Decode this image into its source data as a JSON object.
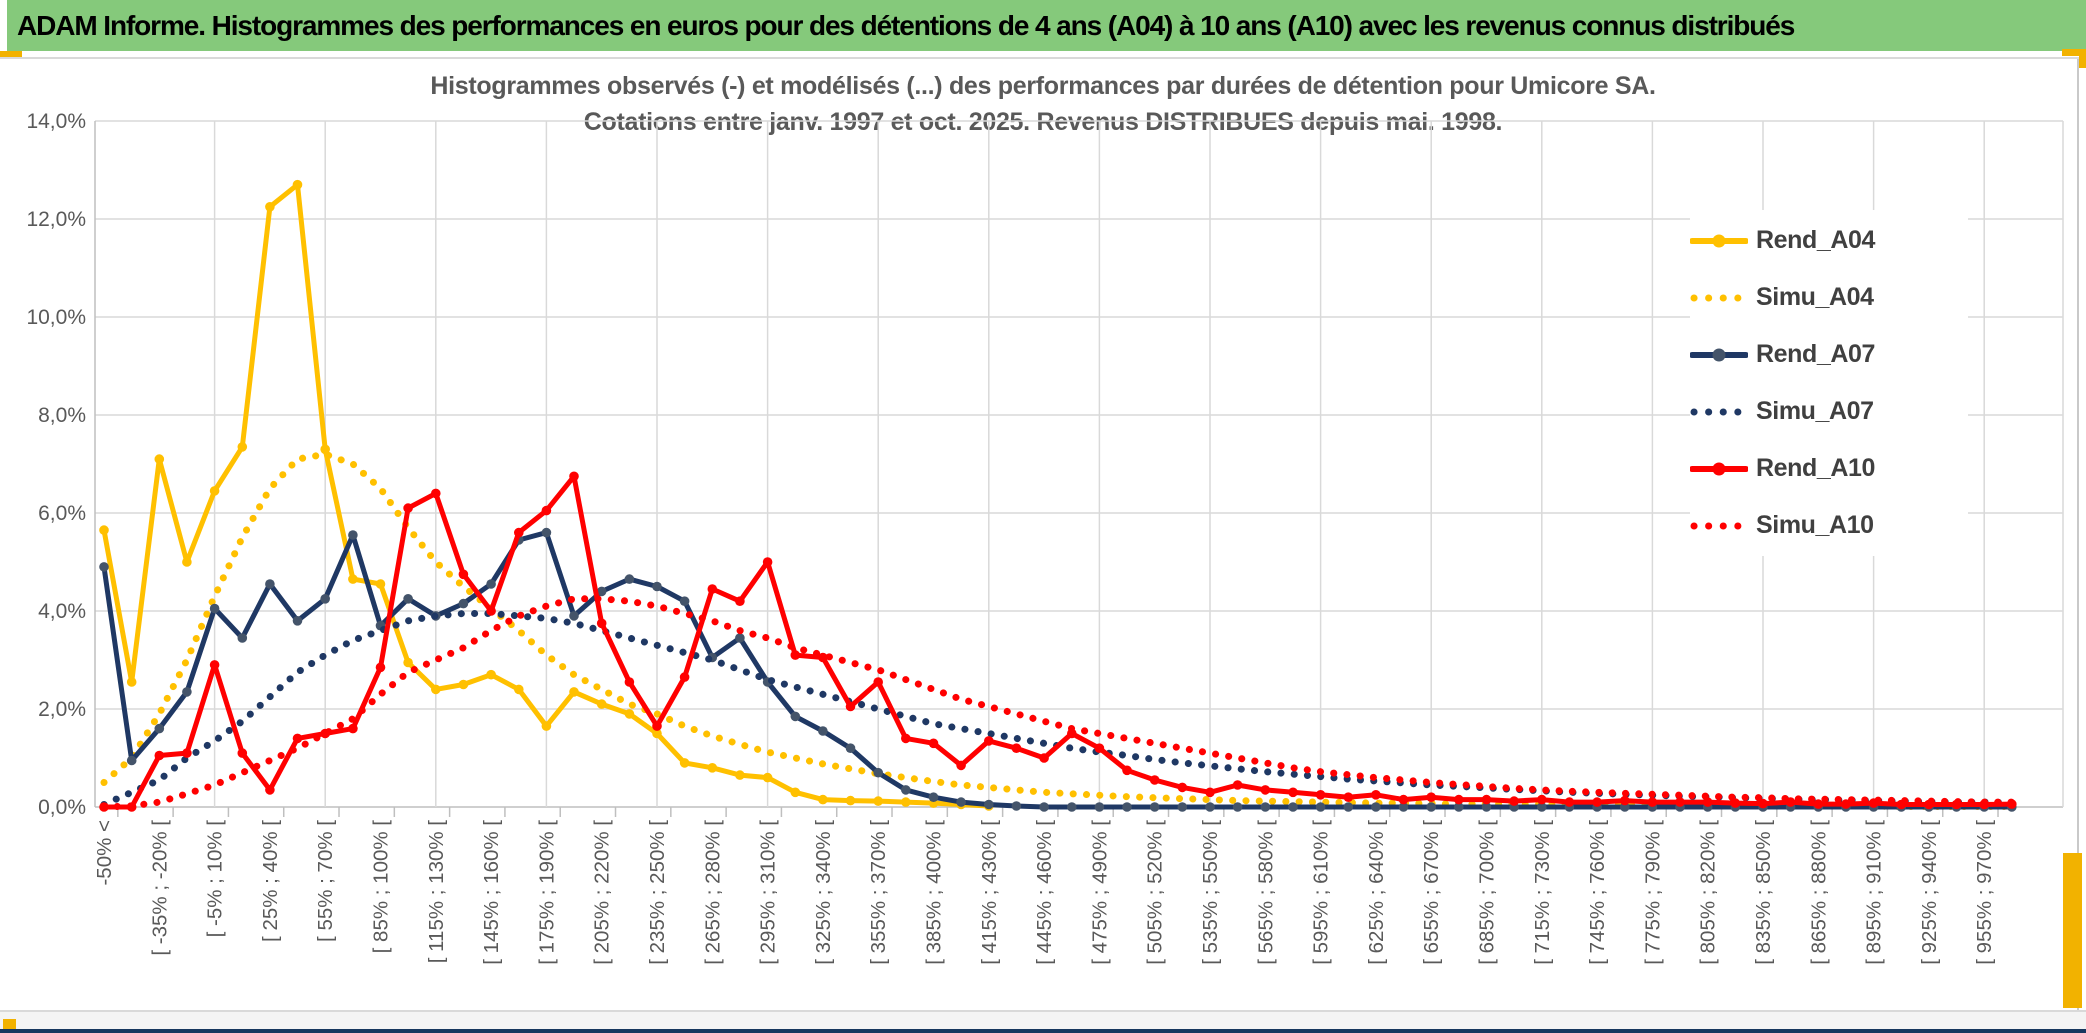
{
  "header": {
    "title": "ADAM Informe. Histogrammes des performances en euros pour des détentions de 4 ans (A04) à 10 ans (A10) avec les revenus connus distribués",
    "bg_color": "#85C97B"
  },
  "chart": {
    "title_line1": "Histogrammes observés (-) et modélisés (...) des performances par durées de détention pour Umicore SA.",
    "title_line2": "Cotations entre janv. 1997 et oct. 2025. Revenus DISTRIBUES depuis mai. 1998.",
    "legend_position": "right"
  },
  "chart_data": {
    "type": "line",
    "title": "Histogrammes observés (-) et modélisés (...) des performances par durées de détention pour Umicore SA. Cotations entre janv. 1997 et oct. 2025. Revenus DISTRIBUES depuis mai. 1998.",
    "ylabel": "",
    "xlabel": "",
    "ylim": [
      0,
      14
    ],
    "y_tick_step_pct": 2,
    "y_tick_labels": [
      "0,0%",
      "2,0%",
      "4,0%",
      "6,0%",
      "8,0%",
      "10,0%",
      "12,0%",
      "14,0%"
    ],
    "grid": true,
    "bin_width_pct": 15,
    "n_bins": 70,
    "x_label_every": 2,
    "x_labels": [
      "-50% <",
      "[ -35% ; -20% [",
      "[ -5% ; 10% [",
      "[ 25% ; 40% [",
      "[ 55% ; 70% [",
      "[ 85% ; 100% [",
      "[ 115% ; 130% [",
      "[ 145% ; 160% [",
      "[ 175% ; 190% [",
      "[ 205% ; 220% [",
      "[ 235% ; 250% [",
      "[ 265% ; 280% [",
      "[ 295% ; 310% [",
      "[ 325% ; 340% [",
      "[ 355% ; 370% [",
      "[ 385% ; 400% [",
      "[ 415% ; 430% [",
      "[ 445% ; 460% [",
      "[ 475% ; 490% [",
      "[ 505% ; 520% [",
      "[ 535% ; 550% [",
      "[ 565% ; 580% [",
      "[ 595% ; 610% [",
      "[ 625% ; 640% [",
      "[ 655% ; 670% [",
      "[ 685% ; 700% [",
      "[ 715% ; 730% [",
      "[ 745% ; 760% [",
      "[ 775% ; 790% [",
      "[ 805% ; 820% [",
      "[ 835% ; 850% [",
      "[ 865% ; 880% [",
      "[ 895% ; 910% [",
      "[ 925% ; 940% [",
      "[ 955% ; 970% ["
    ],
    "series": [
      {
        "name": "Rend_A04",
        "style": "solid",
        "color": "#FFC000",
        "marker_color": "#FFC000",
        "values": [
          5.65,
          2.55,
          7.1,
          5.0,
          6.45,
          7.35,
          12.25,
          12.7,
          7.3,
          4.65,
          4.55,
          2.95,
          2.4,
          2.5,
          2.7,
          2.4,
          1.65,
          2.35,
          2.1,
          1.9,
          1.5,
          0.9,
          0.8,
          0.65,
          0.6,
          0.3,
          0.15,
          0.13,
          0.12,
          0.1,
          0.08,
          0.05,
          0.02,
          null,
          null,
          null,
          null,
          null,
          null,
          null,
          null,
          null,
          null,
          null,
          null,
          null,
          null,
          null,
          null,
          null,
          null,
          null,
          null,
          null,
          null,
          null,
          null,
          null,
          null,
          null,
          null,
          null,
          null,
          null,
          null,
          null,
          null,
          null,
          null,
          null
        ]
      },
      {
        "name": "Simu_A04",
        "style": "dotted",
        "color": "#FFC000",
        "values": [
          0.5,
          1.0,
          1.9,
          3.0,
          4.3,
          5.5,
          6.5,
          7.1,
          7.2,
          7.0,
          6.5,
          5.7,
          5.0,
          4.5,
          4.05,
          3.6,
          3.1,
          2.7,
          2.4,
          2.1,
          1.9,
          1.65,
          1.45,
          1.28,
          1.12,
          1.0,
          0.88,
          0.78,
          0.68,
          0.6,
          0.52,
          0.45,
          0.4,
          0.35,
          0.3,
          0.27,
          0.24,
          0.21,
          0.19,
          0.17,
          0.15,
          0.13,
          0.12,
          0.11,
          0.1,
          0.09,
          0.08,
          0.08,
          0.07,
          0.06,
          0.06,
          0.05,
          0.05,
          0.04,
          0.04,
          0.04,
          0.03,
          0.03,
          0.03,
          0.03,
          0.02,
          0.02,
          0.02,
          0.02,
          0.02,
          0.01,
          0.01,
          0.01,
          0.01,
          0.01
        ]
      },
      {
        "name": "Rend_A07",
        "style": "solid",
        "color": "#1F3864",
        "marker_color": "#44546A",
        "values": [
          4.9,
          0.95,
          1.6,
          2.35,
          4.05,
          3.45,
          4.55,
          3.8,
          4.25,
          5.55,
          3.7,
          4.25,
          3.9,
          4.15,
          4.55,
          5.45,
          5.6,
          3.9,
          4.4,
          4.65,
          4.5,
          4.2,
          3.05,
          3.45,
          2.55,
          1.85,
          1.55,
          1.2,
          0.7,
          0.35,
          0.2,
          0.1,
          0.05,
          0.02,
          0,
          0,
          0,
          0,
          0,
          0,
          0,
          0,
          0,
          0,
          0,
          0,
          0,
          0,
          0,
          0,
          0,
          0,
          0,
          0,
          0,
          0,
          0,
          0,
          0,
          0,
          0,
          0,
          0,
          0,
          0,
          0,
          0,
          0,
          0,
          0
        ]
      },
      {
        "name": "Simu_A07",
        "style": "dotted",
        "color": "#1F3864",
        "values": [
          0.05,
          0.3,
          0.55,
          1.0,
          1.35,
          1.75,
          2.25,
          2.75,
          3.1,
          3.4,
          3.6,
          3.8,
          3.9,
          3.95,
          3.95,
          3.9,
          3.85,
          3.75,
          3.6,
          3.45,
          3.3,
          3.15,
          3.0,
          2.8,
          2.6,
          2.45,
          2.3,
          2.15,
          2.0,
          1.85,
          1.7,
          1.6,
          1.5,
          1.4,
          1.3,
          1.2,
          1.12,
          1.05,
          0.97,
          0.9,
          0.84,
          0.78,
          0.72,
          0.67,
          0.62,
          0.57,
          0.53,
          0.49,
          0.45,
          0.42,
          0.39,
          0.36,
          0.33,
          0.3,
          0.28,
          0.26,
          0.24,
          0.22,
          0.21,
          0.19,
          0.18,
          0.16,
          0.15,
          0.14,
          0.13,
          0.12,
          0.11,
          0.1,
          0.1,
          0.09
        ]
      },
      {
        "name": "Rend_A10",
        "style": "solid",
        "color": "#FF0000",
        "marker_color": "#FF0000",
        "values": [
          0,
          0,
          1.05,
          1.1,
          2.9,
          1.1,
          0.35,
          1.4,
          1.5,
          1.6,
          2.85,
          6.1,
          6.4,
          4.75,
          4.0,
          5.6,
          6.05,
          6.75,
          3.75,
          2.55,
          1.65,
          2.65,
          4.45,
          4.2,
          5.0,
          3.1,
          3.05,
          2.05,
          2.55,
          1.4,
          1.3,
          0.85,
          1.35,
          1.2,
          1.0,
          1.5,
          1.2,
          0.75,
          0.55,
          0.4,
          0.3,
          0.45,
          0.35,
          0.3,
          0.25,
          0.2,
          0.25,
          0.15,
          0.2,
          0.15,
          0.15,
          0.12,
          0.15,
          0.1,
          0.1,
          0.13,
          0.1,
          0.1,
          0.1,
          0.08,
          0.07,
          0.1,
          0.06,
          0.06,
          0.08,
          0.05,
          0.05,
          0.05,
          0.05,
          0.06
        ]
      },
      {
        "name": "Simu_A10",
        "style": "dotted",
        "color": "#FF0000",
        "values": [
          0,
          0.02,
          0.1,
          0.27,
          0.45,
          0.7,
          0.95,
          1.2,
          1.5,
          1.8,
          2.3,
          2.75,
          3.0,
          3.25,
          3.6,
          3.9,
          4.1,
          4.25,
          4.25,
          4.2,
          4.1,
          3.95,
          3.8,
          3.6,
          3.45,
          3.25,
          3.1,
          2.95,
          2.8,
          2.6,
          2.4,
          2.2,
          2.05,
          1.9,
          1.75,
          1.6,
          1.5,
          1.4,
          1.3,
          1.2,
          1.1,
          1.0,
          0.9,
          0.8,
          0.72,
          0.66,
          0.6,
          0.55,
          0.5,
          0.46,
          0.42,
          0.38,
          0.35,
          0.32,
          0.3,
          0.28,
          0.26,
          0.24,
          0.22,
          0.2,
          0.19,
          0.17,
          0.16,
          0.15,
          0.14,
          0.13,
          0.12,
          0.11,
          0.1,
          0.1
        ]
      }
    ],
    "colors": {
      "grid": "#D9D9D9",
      "axis": "#BFBFBF",
      "tick_text": "#595959",
      "title_text": "#595959",
      "legend_text": "#404040"
    }
  }
}
